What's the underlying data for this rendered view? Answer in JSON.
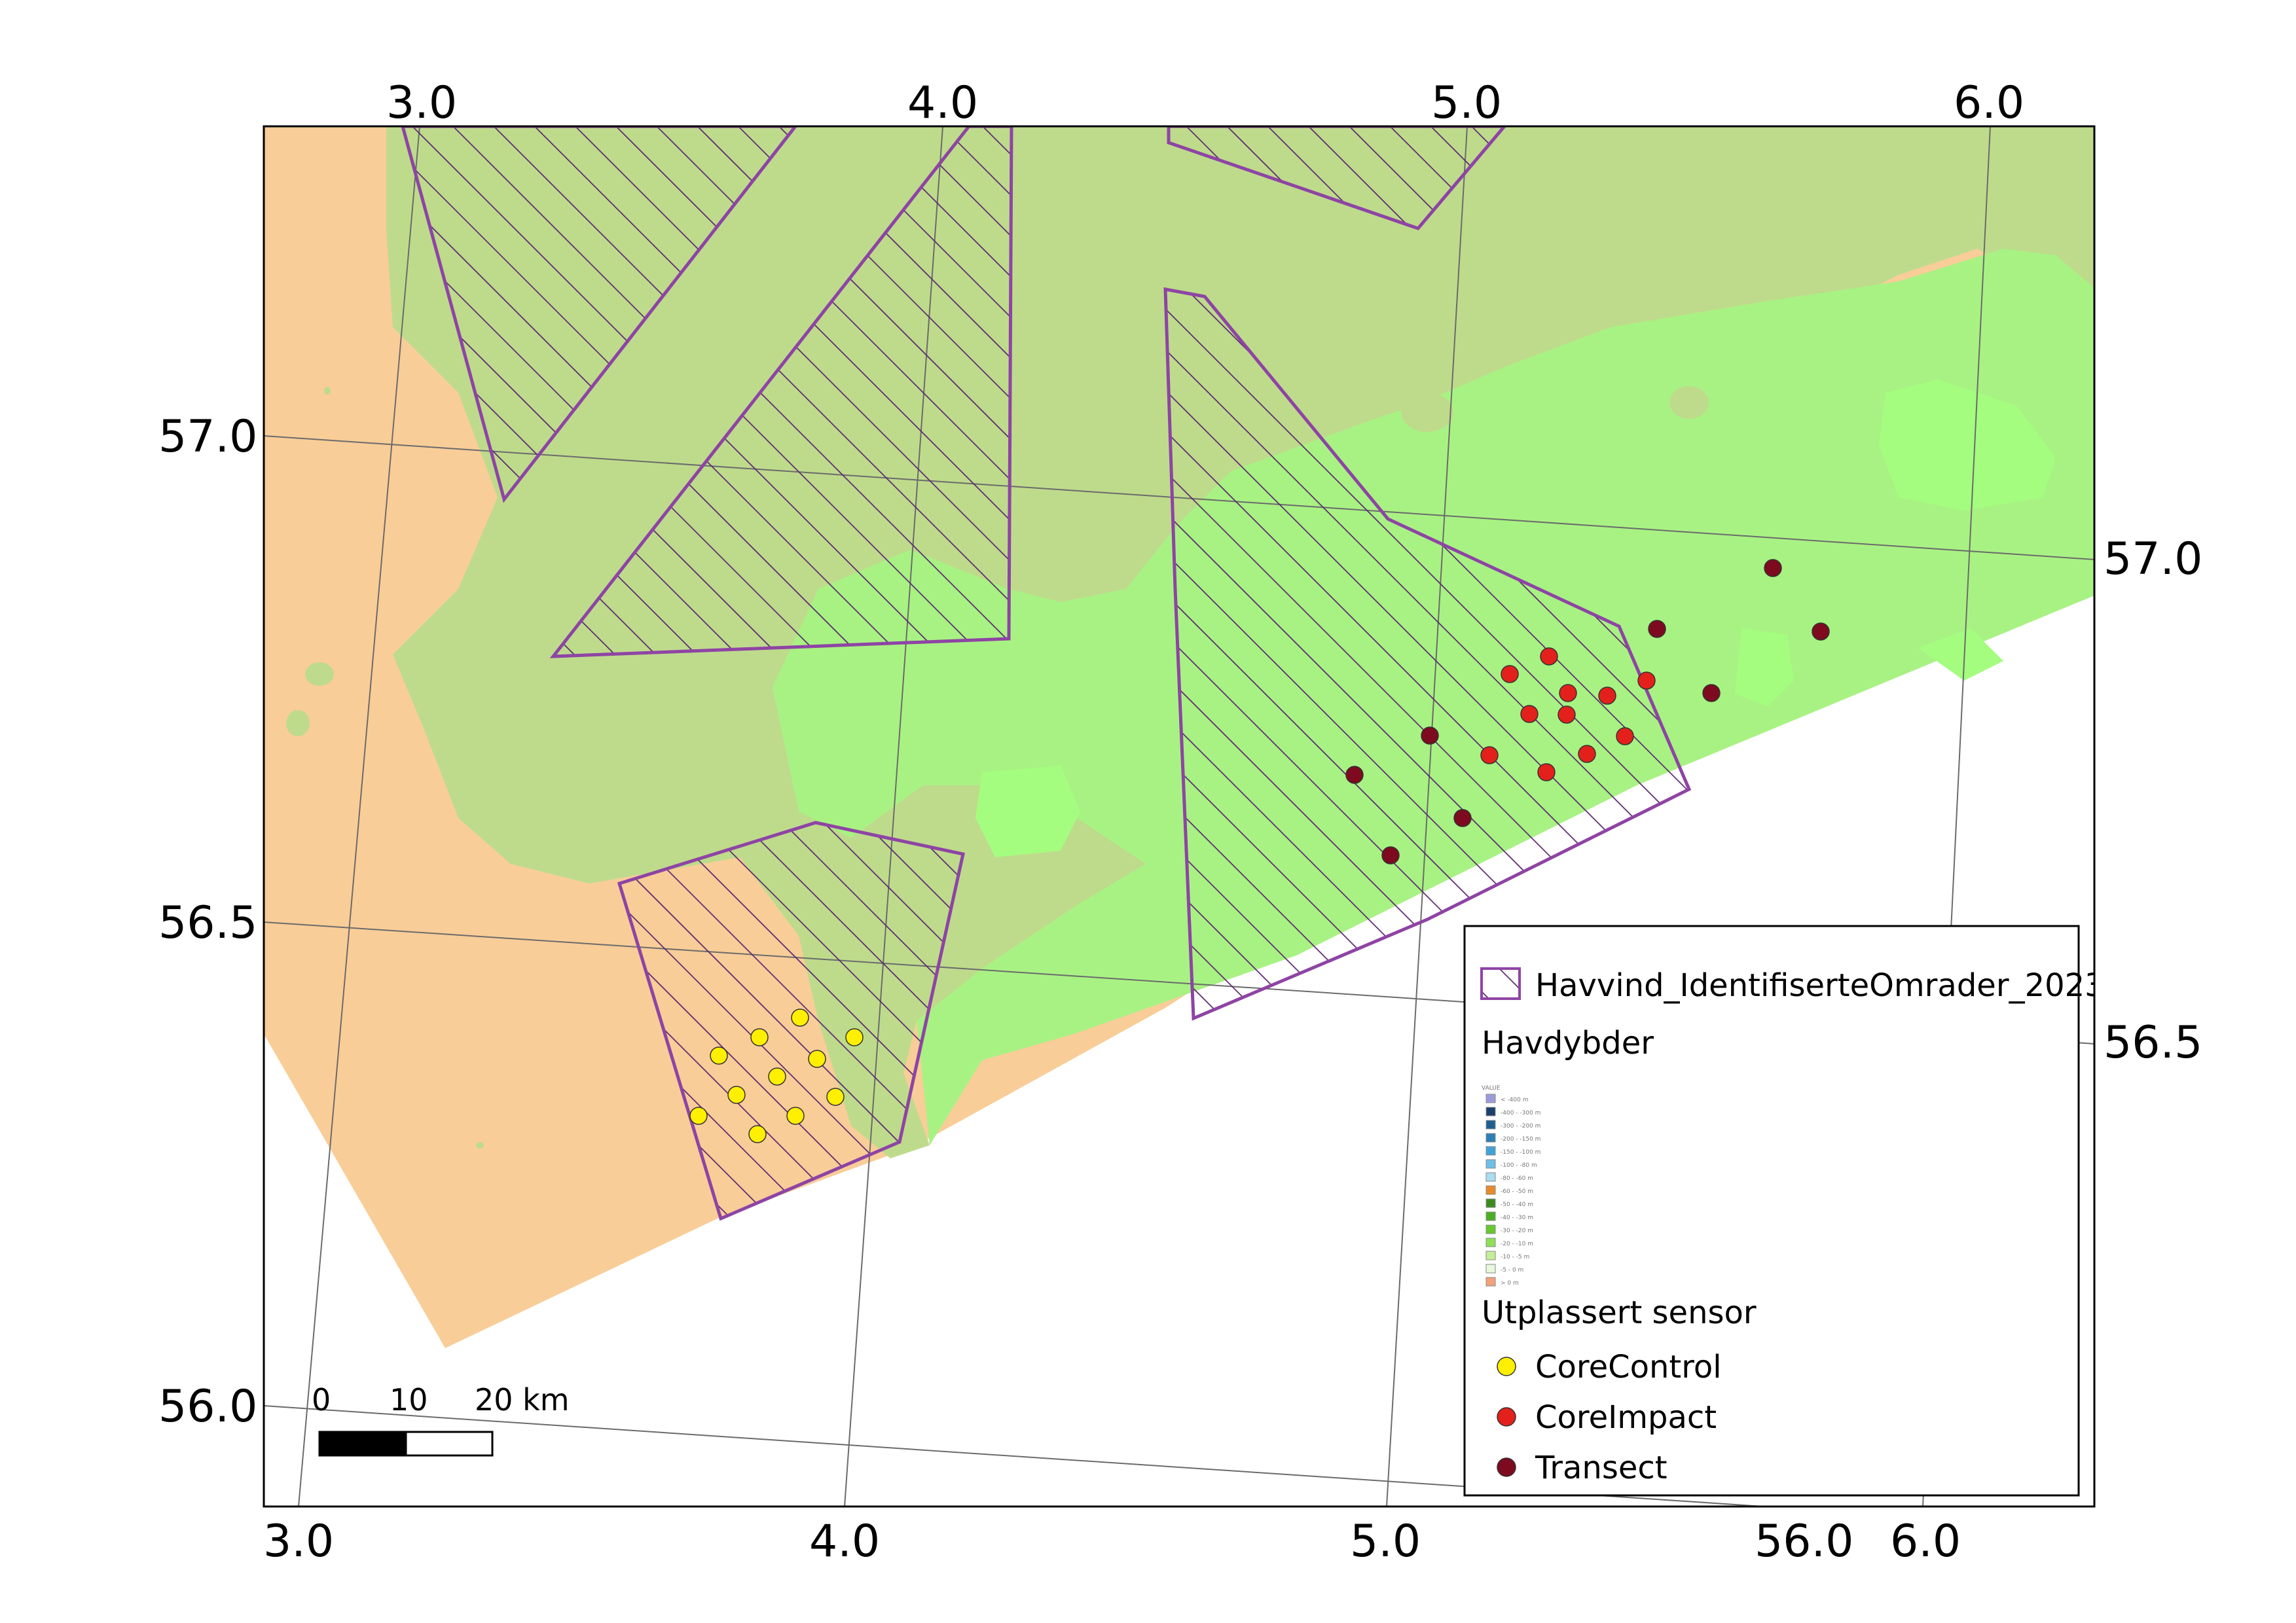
{
  "top_lon_labels": [
    "3.0",
    "4.0",
    "5.0",
    "6.0"
  ],
  "bottom_lon_labels": [
    "3.0",
    "4.0",
    "5.0",
    "6.0"
  ],
  "bottom_extra_label": "56.0",
  "left_lat_labels": [
    "57.0",
    "56.5",
    "56.0"
  ],
  "right_lat_labels": [
    "57.0",
    "56.5"
  ],
  "scale_bar": {
    "ticks": [
      "0",
      "10",
      "20 km"
    ]
  },
  "legend": {
    "areas_label": "Havvind_IdentifiserteOmrader_2023",
    "depth_title": "Havdybder",
    "depth_header": "VALUE",
    "depth_classes": [
      {
        "label": "< -400 m",
        "color": "#9b9bdc"
      },
      {
        "label": "-400 - -300 m",
        "color": "#1d3f6e"
      },
      {
        "label": "-300 - -200 m",
        "color": "#1f5f8f"
      },
      {
        "label": "-200 - -150 m",
        "color": "#2b7fb5"
      },
      {
        "label": "-150 - -100 m",
        "color": "#3fa3d8"
      },
      {
        "label": "-100 - -80 m",
        "color": "#6fc0e8"
      },
      {
        "label": "-80 - -60 m",
        "color": "#a9ddf2"
      },
      {
        "label": "-60 - -50 m",
        "color": "#e88a2a"
      },
      {
        "label": "-50 - -40 m",
        "color": "#3c8a1f"
      },
      {
        "label": "-40 - -30 m",
        "color": "#4caf22"
      },
      {
        "label": "-30 - -20 m",
        "color": "#66c92e"
      },
      {
        "label": "-20 - -10 m",
        "color": "#8fdf58"
      },
      {
        "label": "-10 - -5 m",
        "color": "#c3ef9b"
      },
      {
        "label": "-5 - 0 m",
        "color": "#e9f7dc"
      },
      {
        "label": "> 0 m",
        "color": "#f2a27a"
      }
    ],
    "sensor_title": "Utplassert sensor",
    "sensors": [
      {
        "label": "CoreControl",
        "color": "#ffef00"
      },
      {
        "label": "CoreImpact",
        "color": "#e3201c"
      },
      {
        "label": "Transect",
        "color": "#7d0a1e"
      }
    ]
  },
  "colors": {
    "shallow": "#f9cd98",
    "mid_depth": "#bedb8c",
    "deep": "#a8f283",
    "deepest": "#a4fd7f",
    "area_outline": "#8e44a4"
  }
}
